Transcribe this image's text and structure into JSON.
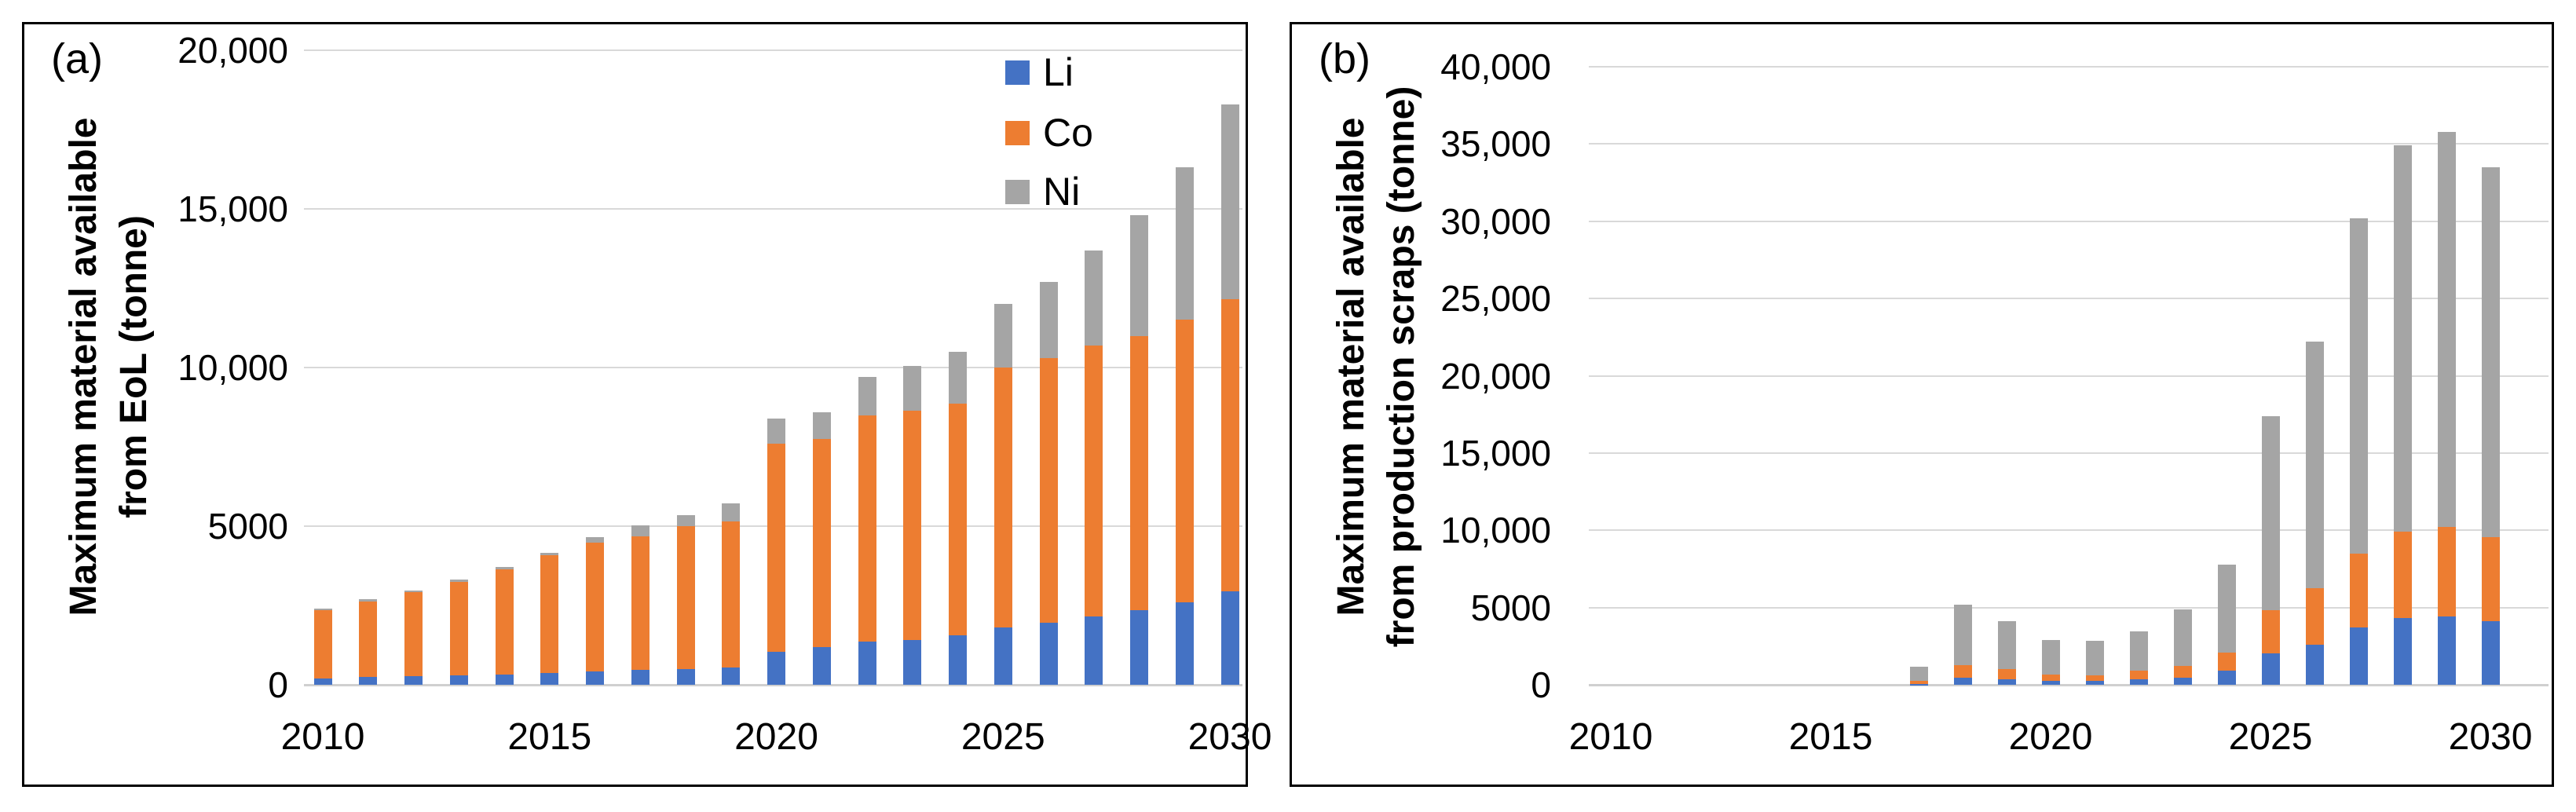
{
  "figure": {
    "description": "Two-panel stacked bar figure of maximum Li, Co, Ni material availability, 2010-2030",
    "panels": [
      "(a)",
      "(b)"
    ]
  },
  "colors": {
    "li": "#4472C4",
    "co": "#ED7D31",
    "ni": "#A5A5A5",
    "gridline": "#D9D9D9",
    "axisline": "#D0D0D0",
    "border": "#000000",
    "text": "#000000",
    "background": "#FFFFFF"
  },
  "chart_data": [
    {
      "type": "bar",
      "stacked": true,
      "panel_label": "(a)",
      "title": "",
      "xlabel": "",
      "ylabel": "Maximum material available from EoL (tonne)",
      "ylabel_line1": "Maximum material available",
      "ylabel_line2": "from EoL (tonne)",
      "ylim": [
        0,
        20000
      ],
      "grid": true,
      "categories": [
        "2010",
        "2011",
        "2012",
        "2013",
        "2014",
        "2015",
        "2016",
        "2017",
        "2018",
        "2019",
        "2020",
        "2021",
        "2022",
        "2023",
        "2024",
        "2025",
        "2026",
        "2027",
        "2028",
        "2029",
        "2030"
      ],
      "series": [
        {
          "name": "Li",
          "color": "#4472C4",
          "values": [
            210,
            240,
            270,
            300,
            330,
            380,
            420,
            460,
            500,
            550,
            1050,
            1200,
            1350,
            1400,
            1550,
            1800,
            1950,
            2150,
            2350,
            2600,
            2950
          ]
        },
        {
          "name": "Co",
          "color": "#ED7D31",
          "values": [
            2140,
            2390,
            2640,
            2940,
            3310,
            3700,
            4050,
            4220,
            4500,
            4600,
            6550,
            6550,
            7150,
            7250,
            7300,
            8200,
            8350,
            8550,
            8650,
            8900,
            9200
          ]
        },
        {
          "name": "Ni",
          "color": "#A5A5A5",
          "values": [
            50,
            60,
            60,
            70,
            80,
            90,
            180,
            340,
            350,
            570,
            800,
            850,
            1200,
            1400,
            1650,
            2000,
            2400,
            3000,
            3800,
            4800,
            6150
          ]
        }
      ],
      "yticks": [
        {
          "value": 0,
          "label": "0"
        },
        {
          "value": 5000,
          "label": "5000"
        },
        {
          "value": 10000,
          "label": "10,000"
        },
        {
          "value": 15000,
          "label": "15,000"
        },
        {
          "value": 20000,
          "label": "20,000"
        }
      ],
      "xticks": [
        {
          "index": 0,
          "label": "2010"
        },
        {
          "index": 5,
          "label": "2015"
        },
        {
          "index": 10,
          "label": "2020"
        },
        {
          "index": 15,
          "label": "2025"
        },
        {
          "index": 20,
          "label": "2030"
        }
      ],
      "legend": {
        "visible": true,
        "position": "top-right",
        "entries": [
          "Li",
          "Co",
          "Ni"
        ]
      }
    },
    {
      "type": "bar",
      "stacked": true,
      "panel_label": "(b)",
      "title": "",
      "xlabel": "",
      "ylabel": "Maximum material available from production scraps (tonne)",
      "ylabel_line1": "Maximum material available",
      "ylabel_line2": "from production scraps (tonne)",
      "ylim": [
        0,
        40000
      ],
      "grid": true,
      "categories": [
        "2010",
        "2011",
        "2012",
        "2013",
        "2014",
        "2015",
        "2016",
        "2017",
        "2018",
        "2019",
        "2020",
        "2021",
        "2022",
        "2023",
        "2024",
        "2025",
        "2026",
        "2027",
        "2028",
        "2029",
        "2030"
      ],
      "series": [
        {
          "name": "Li",
          "color": "#4472C4",
          "values": [
            0,
            0,
            0,
            0,
            0,
            0,
            0,
            30,
            480,
            380,
            260,
            230,
            350,
            470,
            900,
            2050,
            2600,
            3700,
            4300,
            4400,
            4100
          ]
        },
        {
          "name": "Co",
          "color": "#ED7D31",
          "values": [
            0,
            0,
            0,
            0,
            0,
            0,
            0,
            230,
            810,
            620,
            400,
            380,
            550,
            730,
            1200,
            2800,
            3650,
            4800,
            5600,
            5800,
            5450
          ]
        },
        {
          "name": "Ni",
          "color": "#A5A5A5",
          "values": [
            0,
            0,
            0,
            0,
            0,
            0,
            0,
            890,
            3910,
            3140,
            2240,
            2240,
            2580,
            3660,
            5700,
            12550,
            15950,
            21700,
            25000,
            25600,
            23950
          ]
        }
      ],
      "yticks": [
        {
          "value": 0,
          "label": "0"
        },
        {
          "value": 5000,
          "label": "5000"
        },
        {
          "value": 10000,
          "label": "10,000"
        },
        {
          "value": 15000,
          "label": "15,000"
        },
        {
          "value": 20000,
          "label": "20,000"
        },
        {
          "value": 25000,
          "label": "25,000"
        },
        {
          "value": 30000,
          "label": "30,000"
        },
        {
          "value": 35000,
          "label": "35,000"
        },
        {
          "value": 40000,
          "label": "40,000"
        }
      ],
      "xticks": [
        {
          "index": 0,
          "label": "2010"
        },
        {
          "index": 5,
          "label": "2015"
        },
        {
          "index": 10,
          "label": "2020"
        },
        {
          "index": 15,
          "label": "2025"
        },
        {
          "index": 20,
          "label": "2030"
        }
      ],
      "legend": {
        "visible": false,
        "entries": []
      }
    }
  ]
}
